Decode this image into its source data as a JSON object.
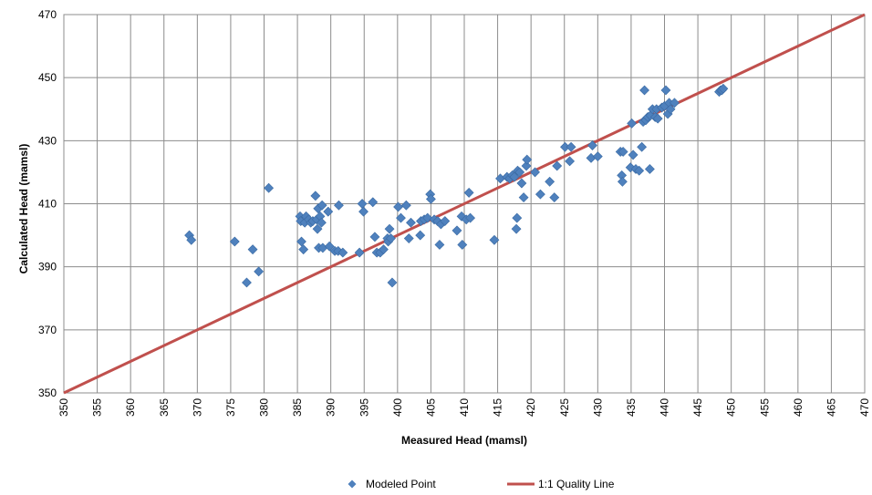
{
  "chart_data": {
    "type": "scatter",
    "xlabel": "Measured Head (mamsl)",
    "ylabel": "Calculated Head (mamsl)",
    "xlim": [
      350,
      470
    ],
    "ylim": [
      350,
      470
    ],
    "x_ticks": [
      "350",
      "355",
      "360",
      "365",
      "370",
      "375",
      "380",
      "385",
      "390",
      "395",
      "400",
      "405",
      "410",
      "415",
      "420",
      "425",
      "430",
      "435",
      "440",
      "445",
      "450",
      "455",
      "460",
      "465",
      "470"
    ],
    "y_ticks": [
      "350",
      "370",
      "390",
      "410",
      "430",
      "450",
      "470"
    ],
    "grid": true,
    "legend_position": "bottom",
    "series": [
      {
        "name": "Modeled Point",
        "kind": "scatter",
        "marker": "diamond",
        "color": "#4F81BD",
        "points": [
          [
            368.8,
            400.0
          ],
          [
            369.1,
            398.5
          ],
          [
            375.6,
            398.0
          ],
          [
            377.4,
            385.0
          ],
          [
            378.3,
            395.5
          ],
          [
            379.2,
            388.5
          ],
          [
            380.7,
            415.0
          ],
          [
            385.4,
            406.0
          ],
          [
            385.5,
            404.5
          ],
          [
            385.6,
            398.0
          ],
          [
            385.9,
            395.5
          ],
          [
            386.1,
            404.0
          ],
          [
            386.3,
            406.0
          ],
          [
            386.7,
            405.0
          ],
          [
            387.0,
            404.0
          ],
          [
            387.3,
            404.5
          ],
          [
            387.7,
            412.5
          ],
          [
            387.9,
            405.0
          ],
          [
            388.0,
            402.0
          ],
          [
            388.1,
            408.5
          ],
          [
            388.2,
            396.0
          ],
          [
            388.4,
            406.0
          ],
          [
            388.6,
            404.0
          ],
          [
            388.7,
            409.5
          ],
          [
            388.8,
            396.0
          ],
          [
            389.6,
            407.5
          ],
          [
            389.8,
            396.5
          ],
          [
            390.6,
            395.0
          ],
          [
            391.1,
            395.0
          ],
          [
            391.2,
            409.5
          ],
          [
            391.8,
            394.5
          ],
          [
            394.3,
            394.5
          ],
          [
            394.7,
            410.0
          ],
          [
            394.9,
            407.5
          ],
          [
            396.3,
            410.5
          ],
          [
            396.6,
            399.5
          ],
          [
            396.9,
            394.5
          ],
          [
            397.4,
            394.5
          ],
          [
            397.9,
            395.5
          ],
          [
            398.5,
            399.0
          ],
          [
            398.6,
            398.0
          ],
          [
            398.8,
            402.0
          ],
          [
            399.2,
            385.0
          ],
          [
            399.0,
            399.0
          ],
          [
            400.1,
            409.0
          ],
          [
            400.5,
            405.5
          ],
          [
            401.3,
            409.5
          ],
          [
            401.7,
            399.0
          ],
          [
            402.0,
            404.0
          ],
          [
            403.4,
            400.0
          ],
          [
            403.5,
            404.5
          ],
          [
            404.0,
            405.0
          ],
          [
            404.5,
            405.5
          ],
          [
            404.9,
            413.0
          ],
          [
            405.0,
            411.5
          ],
          [
            405.5,
            405.0
          ],
          [
            406.0,
            404.5
          ],
          [
            406.3,
            397.0
          ],
          [
            406.5,
            403.5
          ],
          [
            407.1,
            404.5
          ],
          [
            408.9,
            401.5
          ],
          [
            409.6,
            406.0
          ],
          [
            409.7,
            397.0
          ],
          [
            410.3,
            405.0
          ],
          [
            410.7,
            413.5
          ],
          [
            410.9,
            405.5
          ],
          [
            414.5,
            398.5
          ],
          [
            415.4,
            418.0
          ],
          [
            416.4,
            418.5
          ],
          [
            416.8,
            418.0
          ],
          [
            417.2,
            419.0
          ],
          [
            417.5,
            418.5
          ],
          [
            417.8,
            402.0
          ],
          [
            417.9,
            405.5
          ],
          [
            418.0,
            420.5
          ],
          [
            418.3,
            420.0
          ],
          [
            418.6,
            416.5
          ],
          [
            418.9,
            412.0
          ],
          [
            419.3,
            422.0
          ],
          [
            419.4,
            424.0
          ],
          [
            420.6,
            420.0
          ],
          [
            421.4,
            413.0
          ],
          [
            422.8,
            417.0
          ],
          [
            423.5,
            412.0
          ],
          [
            423.9,
            422.0
          ],
          [
            425.1,
            428.0
          ],
          [
            425.8,
            423.5
          ],
          [
            426.0,
            428.0
          ],
          [
            429.0,
            424.5
          ],
          [
            429.2,
            428.5
          ],
          [
            430.0,
            425.0
          ],
          [
            433.4,
            426.5
          ],
          [
            433.6,
            419.0
          ],
          [
            433.7,
            417.0
          ],
          [
            433.8,
            426.5
          ],
          [
            434.9,
            421.5
          ],
          [
            435.1,
            435.5
          ],
          [
            435.3,
            425.5
          ],
          [
            435.7,
            421.0
          ],
          [
            436.2,
            420.5
          ],
          [
            436.6,
            428.0
          ],
          [
            436.8,
            436.0
          ],
          [
            437.0,
            446.0
          ],
          [
            437.2,
            436.5
          ],
          [
            437.5,
            437.5
          ],
          [
            437.8,
            421.0
          ],
          [
            437.9,
            438.0
          ],
          [
            438.2,
            440.0
          ],
          [
            438.6,
            437.5
          ],
          [
            438.8,
            440.0
          ],
          [
            439.0,
            437.0
          ],
          [
            439.6,
            440.5
          ],
          [
            440.0,
            441.0
          ],
          [
            440.2,
            446.0
          ],
          [
            440.5,
            438.5
          ],
          [
            440.7,
            442.0
          ],
          [
            440.9,
            440.0
          ],
          [
            441.5,
            442.0
          ],
          [
            448.2,
            445.5
          ],
          [
            448.4,
            446.0
          ],
          [
            448.6,
            446.0
          ],
          [
            448.8,
            446.5
          ]
        ]
      },
      {
        "name": "1:1 Quality Line",
        "kind": "line",
        "color": "#C0504D",
        "points": [
          [
            350,
            350
          ],
          [
            470,
            470
          ]
        ]
      }
    ]
  }
}
